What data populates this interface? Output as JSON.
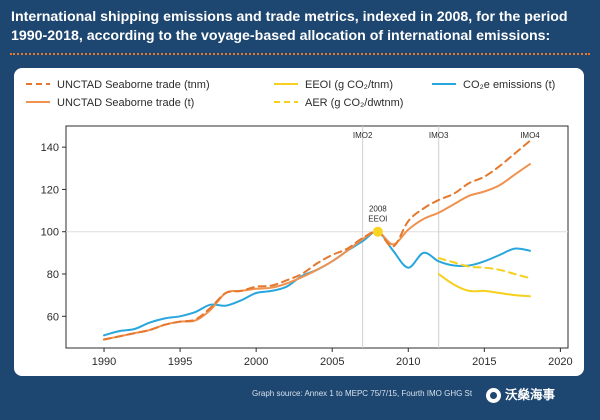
{
  "title_lines": [
    "International shipping emissions and trade metrics, indexed in 2008, for the period",
    "1990-2018, according to the voyage-based allocation of international emissions:"
  ],
  "source": "Graph source:  Annex 1 to MEPC 75/7/15,  Fourth IMO GHG St",
  "watermark": "沃燊海事",
  "colors": {
    "background": "#1d4670",
    "accent_dots": "#e5772e",
    "tnm": "#e5772e",
    "t": "#f0924f",
    "eeoi": "#f5d01c",
    "aer": "#f5d01c",
    "co2": "#29a6dd",
    "marker": "#f9d423"
  },
  "legend": [
    {
      "text": "UNCTAD Seaborne trade (tnm)",
      "style": "dashed",
      "color": "#e5772e"
    },
    {
      "text": "UNCTAD Seaborne trade (t)",
      "style": "solid",
      "color": "#f0924f"
    },
    {
      "text": "EEOI (g CO₂/tnm)",
      "style": "solid",
      "color": "#f5d01c"
    },
    {
      "text": "AER (g CO₂/dwtnm)",
      "style": "dashed",
      "color": "#f5d01c"
    },
    {
      "text": "CO₂e emissions (t)",
      "style": "solid",
      "color": "#29a6dd"
    }
  ],
  "chart_data": {
    "type": "line",
    "x_ticks": [
      1990,
      1995,
      2000,
      2005,
      2010,
      2015,
      2020
    ],
    "y_ticks": [
      60,
      80,
      100,
      120,
      140
    ],
    "xlim": [
      1987.5,
      2020.5
    ],
    "ylim": [
      45,
      150
    ],
    "grid": false,
    "legend_position": "top",
    "reference_line": 100,
    "periods": [
      {
        "label": "IMO2",
        "x": 2007
      },
      {
        "label": "IMO3",
        "x": 2012
      },
      {
        "label": "IMO4",
        "x": 2018
      }
    ],
    "period_dividers": [
      2007,
      2012
    ],
    "annotation": {
      "lines": [
        "2008",
        "EEOI"
      ],
      "x": 2008,
      "y": 100
    },
    "series": [
      {
        "name": "UNCTAD Seaborne trade (tnm)",
        "style": "dashed",
        "x": [
          1990,
          1991,
          1992,
          1993,
          1994,
          1995,
          1996,
          1997,
          1998,
          1999,
          2000,
          2001,
          2002,
          2003,
          2004,
          2005,
          2006,
          2007,
          2008,
          2009,
          2010,
          2011,
          2012,
          2013,
          2014,
          2015,
          2016,
          2017,
          2018
        ],
        "y": [
          49,
          50.5,
          52,
          53.5,
          56,
          57.5,
          58.5,
          64,
          71,
          72,
          74,
          74.5,
          77,
          80,
          85,
          89,
          92,
          97,
          100,
          93,
          105,
          111,
          115,
          118,
          123,
          126,
          131,
          137,
          143
        ]
      },
      {
        "name": "UNCTAD Seaborne trade (t)",
        "style": "solid",
        "x": [
          1990,
          1991,
          1992,
          1993,
          1994,
          1995,
          1996,
          1997,
          1998,
          1999,
          2000,
          2001,
          2002,
          2003,
          2004,
          2005,
          2006,
          2007,
          2008,
          2009,
          2010,
          2011,
          2012,
          2013,
          2014,
          2015,
          2016,
          2017,
          2018
        ],
        "y": [
          49,
          50.5,
          52,
          53.5,
          56,
          57.5,
          58,
          63,
          71,
          72,
          73,
          73.5,
          75.5,
          78.5,
          82,
          86,
          91,
          96.5,
          100,
          94,
          101,
          106,
          109,
          113,
          117,
          119,
          122,
          127,
          132
        ]
      },
      {
        "name": "EEOI (g CO₂/tnm)",
        "style": "solid",
        "x": [
          2012,
          2013,
          2014,
          2015,
          2016,
          2017,
          2018
        ],
        "y": [
          80,
          75,
          72,
          72,
          71,
          70,
          69.5
        ]
      },
      {
        "name": "AER (g CO₂/dwtnm)",
        "style": "dashed",
        "x": [
          2012,
          2013,
          2014,
          2015,
          2016,
          2017,
          2018
        ],
        "y": [
          87.5,
          85.5,
          83.5,
          83,
          82,
          80,
          78
        ]
      },
      {
        "name": "CO₂e emissions (t)",
        "style": "solid",
        "x": [
          1990,
          1991,
          1992,
          1993,
          1994,
          1995,
          1996,
          1997,
          1998,
          1999,
          2000,
          2001,
          2002,
          2003,
          2004,
          2005,
          2006,
          2007,
          2008,
          2009,
          2010,
          2011,
          2012,
          2013,
          2014,
          2015,
          2016,
          2017,
          2018
        ],
        "y": [
          51,
          53,
          54,
          57,
          59,
          60,
          62,
          65.5,
          65,
          67.5,
          71,
          72,
          74,
          79,
          82,
          86,
          91,
          95.5,
          100,
          91,
          83,
          90,
          86,
          84,
          84,
          86,
          89,
          92,
          91
        ]
      }
    ]
  }
}
